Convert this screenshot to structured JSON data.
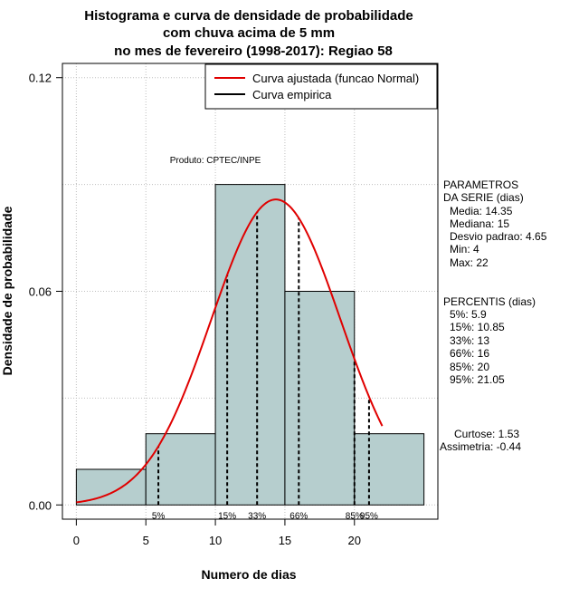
{
  "chart_data": {
    "type": "histogram",
    "title_lines": [
      "Histograma e curva de densidade de probabilidade",
      "com chuva acima de 5 mm",
      "no mes de fevereiro (1998-2017): Regiao 58"
    ],
    "xlabel": "Numero de dias",
    "ylabel": "Densidade de probabilidade",
    "xlim": [
      -1,
      26
    ],
    "ylim": [
      -0.004,
      0.124
    ],
    "x_ticks": [
      0,
      5,
      10,
      15,
      20
    ],
    "x_tick_labels": [
      "0",
      "5",
      "10",
      "15",
      "20"
    ],
    "y_ticks": [
      0.0,
      0.06,
      0.12
    ],
    "y_tick_labels": [
      "0.00",
      "0.06",
      "0.12"
    ],
    "grid": true,
    "bars": [
      {
        "x0": 0,
        "x1": 5,
        "density": 0.01
      },
      {
        "x0": 5,
        "x1": 10,
        "density": 0.02
      },
      {
        "x0": 10,
        "x1": 15,
        "density": 0.09
      },
      {
        "x0": 15,
        "x1": 20,
        "density": 0.06
      },
      {
        "x0": 20,
        "x1": 25,
        "density": 0.02
      }
    ],
    "bar_color": "#b6cece",
    "normal_curve": {
      "mean": 14.35,
      "sd": 4.65,
      "x_from": 0,
      "x_to": 22,
      "color": "#e00000"
    },
    "percentile_markers": [
      {
        "label": "5%",
        "x": 5.9
      },
      {
        "label": "15%",
        "x": 10.85
      },
      {
        "label": "33%",
        "x": 13
      },
      {
        "label": "66%",
        "x": 16
      },
      {
        "label": "85%",
        "x": 20
      },
      {
        "label": "95%",
        "x": 21.05
      }
    ],
    "legend": {
      "position": "top-right",
      "items": [
        {
          "label": "Curva ajustada (funcao Normal)",
          "color": "#e00000"
        },
        {
          "label": "Curva empirica",
          "color": "#000000"
        }
      ]
    },
    "annotation": "Produto: CPTEC/INPE"
  },
  "stats_panel": {
    "parametros_title_1": "PARAMETROS",
    "parametros_title_2": "DA SERIE (dias)",
    "media": "Media: 14.35",
    "mediana": "Mediana: 15",
    "desvio": "Desvio padrao: 4.65",
    "min": "Min: 4",
    "max": "Max: 22",
    "percentis_title": "PERCENTIS (dias)",
    "p5": "5%: 5.9",
    "p15": "15%: 10.85",
    "p33": "33%: 13",
    "p66": "66%: 16",
    "p85": "85%: 20",
    "p95": "95%: 21.05",
    "curtose": "Curtose: 1.53",
    "assimetria": "Assimetria: -0.44"
  }
}
